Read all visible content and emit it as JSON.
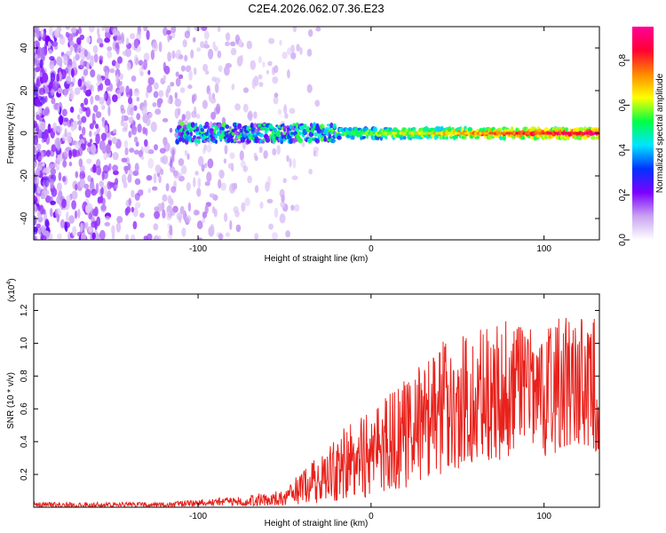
{
  "title": "C2E4.2026.062.07.36.E23",
  "chart_data": [
    {
      "type": "heatmap",
      "title": "C2E4.2026.062.07.36.E23",
      "xlabel": "Height of straight line (km)",
      "ylabel": "Frequency (Hz)",
      "xlim": [
        -195,
        132
      ],
      "ylim": [
        -50,
        50
      ],
      "x_ticks": [
        -100,
        0,
        100
      ],
      "y_ticks": [
        -40,
        -20,
        0,
        20,
        40
      ],
      "colorbar": {
        "label": "Normalized spectral amplitude",
        "range": [
          0,
          0.95
        ],
        "ticks": [
          0.0,
          0.2,
          0.4,
          0.6,
          0.8
        ],
        "colormap": [
          "#ffffff",
          "#c9a2f2",
          "#7c00ff",
          "#0033ff",
          "#00e5ff",
          "#00ff44",
          "#ffff00",
          "#ff8800",
          "#ff0033",
          "#ff0099"
        ]
      },
      "features": {
        "diffuse_noise_x_range": [
          -195,
          -50
        ],
        "band_center_frequency_hz": 0,
        "band_x_range": [
          -112,
          132
        ],
        "band_peak_amplitude": 0.95
      }
    },
    {
      "type": "line",
      "title": "",
      "xlabel": "Height of straight line (km)",
      "ylabel": "SNR (10 * v/v)",
      "y_multiplier_label": "(x10",
      "y_multiplier_exponent": "4",
      "y_multiplier_close": ")",
      "xlim": [
        -195,
        132
      ],
      "ylim": [
        0,
        1.3
      ],
      "x_ticks": [
        -100,
        0,
        100
      ],
      "y_ticks": [
        0.2,
        0.4,
        0.6,
        0.8,
        1.0,
        1.2
      ],
      "series": [
        {
          "name": "SNR",
          "color": "#e8221c",
          "envelope_x": [
            -195,
            -120,
            -80,
            -50,
            -40,
            -25,
            -15,
            0,
            20,
            40,
            60,
            80,
            100,
            120,
            132
          ],
          "envelope_max": [
            0.03,
            0.03,
            0.06,
            0.1,
            0.22,
            0.35,
            0.5,
            0.6,
            0.78,
            0.98,
            1.1,
            1.1,
            1.1,
            1.2,
            1.1
          ],
          "envelope_min": [
            0.0,
            0.0,
            0.01,
            0.01,
            0.02,
            0.03,
            0.05,
            0.06,
            0.12,
            0.2,
            0.26,
            0.3,
            0.3,
            0.35,
            0.3
          ]
        }
      ]
    }
  ]
}
